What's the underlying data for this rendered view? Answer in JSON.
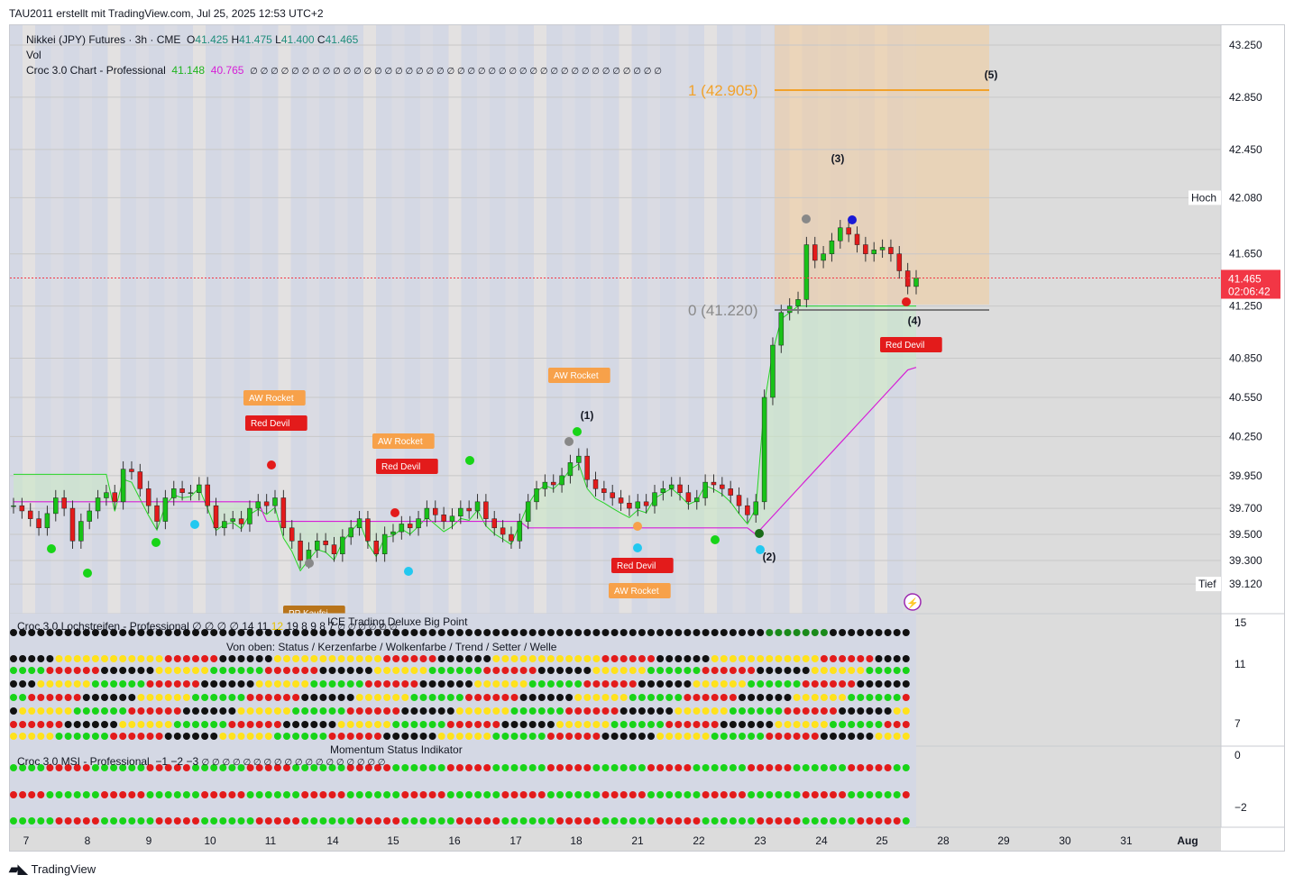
{
  "header": {
    "text": "TAU2011 erstellt mit TradingView.com, Jul 25, 2025 12:53 UTC+2"
  },
  "legend": {
    "symbol": "Nikkei (JPY) Futures · 3h · CME",
    "o_label": "O",
    "o_value": "41.425",
    "h_label": "H",
    "h_value": "41.475",
    "l_label": "L",
    "l_value": "41.400",
    "c_label": "C",
    "c_value": "41.465",
    "vol": "Vol",
    "croc": "Croc 3.0 Chart - Professional",
    "croc_v1": "41.148",
    "croc_v2": "40.765",
    "croc_rest": "∅ ∅ ∅ ∅ ∅ ∅ ∅ ∅ ∅ ∅ ∅ ∅ ∅ ∅ ∅ ∅ ∅ ∅ ∅ ∅ ∅ ∅ ∅ ∅ ∅ ∅ ∅ ∅ ∅ ∅ ∅ ∅ ∅ ∅ ∅ ∅ ∅ ∅ ∅ ∅"
  },
  "price_axis": [
    "43.250",
    "42.850",
    "42.450",
    "42.080",
    "41.650",
    "41.465",
    "41.250",
    "40.850",
    "40.550",
    "40.250",
    "39.950",
    "39.700",
    "39.500",
    "39.300",
    "39.120"
  ],
  "hoch": {
    "label": "Hoch",
    "value": "42.080"
  },
  "tief": {
    "label": "Tief",
    "value": "39.120"
  },
  "last_price": {
    "value": "41.465",
    "countdown": "02:06:42",
    "color": "#f23645"
  },
  "fib": {
    "level1": "1 (42.905)",
    "level0": "0 (41.220)"
  },
  "waves": [
    "(1)",
    "(2)",
    "(3)",
    "(4)",
    "(5)"
  ],
  "signals": {
    "aw_rocket": "AW Rocket",
    "red_devil": "Red Devil",
    "pp_partial": "PP Kaufsi"
  },
  "x_axis": [
    "7",
    "8",
    "9",
    "10",
    "11",
    "14",
    "15",
    "16",
    "17",
    "18",
    "21",
    "22",
    "23",
    "24",
    "25",
    "28",
    "29",
    "30",
    "31",
    "Aug"
  ],
  "pane2": {
    "title": "Croc 3.0 Lochstreifen - Professional ∅ ∅ ∅ ∅ 14",
    "title_nums": [
      "11",
      "12",
      "19",
      "8",
      "9",
      "8",
      "7"
    ],
    "title_rest": "∅ ∅ ∅ ∅ ∅ ∅",
    "overlay": "ICE Trading Deluxe Big Point",
    "subtitle": "Von oben: Status / Kerzenfarbe / Wolkenfarbe / Trend / Setter / Welle",
    "axis": [
      "15",
      "11",
      "7"
    ]
  },
  "pane3": {
    "overlay": "Momentum Status Indikator",
    "title": "Croc 3.0 MSI - Professional",
    "v1": "−1",
    "v2": "−2",
    "v3": "−3",
    "rest": "∅ ∅ ∅ ∅ ∅ ∅ ∅ ∅ ∅ ∅ ∅ ∅ ∅ ∅ ∅ ∅ ∅ ∅",
    "axis": [
      "0",
      "−2"
    ]
  },
  "footer": {
    "brand": "TradingView"
  },
  "chart_data": {
    "type": "candlestick",
    "title": "Nikkei (JPY) Futures · 3h · CME",
    "ylim": [
      39.0,
      43.4
    ],
    "ticks": [
      43.25,
      42.85,
      42.45,
      42.08,
      41.65,
      41.25,
      40.85,
      40.55,
      40.25,
      39.95,
      39.7,
      39.5,
      39.3,
      39.12
    ],
    "fib_levels": [
      {
        "label": "1 (42.905)",
        "value": 42.905
      },
      {
        "label": "0 (41.220)",
        "value": 41.22
      }
    ],
    "last": 41.465,
    "high": 42.08,
    "low": 39.12,
    "closes": [
      39.72,
      39.68,
      39.62,
      39.55,
      39.66,
      39.78,
      39.7,
      39.45,
      39.6,
      39.68,
      39.78,
      39.82,
      39.75,
      40.0,
      39.98,
      39.85,
      39.72,
      39.6,
      39.78,
      39.85,
      39.82,
      39.82,
      39.88,
      39.72,
      39.55,
      39.6,
      39.62,
      39.58,
      39.7,
      39.75,
      39.72,
      39.78,
      39.55,
      39.45,
      39.3,
      39.38,
      39.45,
      39.42,
      39.35,
      39.48,
      39.55,
      39.62,
      39.45,
      39.35,
      39.5,
      39.52,
      39.58,
      39.55,
      39.62,
      39.7,
      39.65,
      39.6,
      39.64,
      39.7,
      39.68,
      39.75,
      39.62,
      39.55,
      39.5,
      39.45,
      39.6,
      39.75,
      39.85,
      39.9,
      39.88,
      39.95,
      40.05,
      40.1,
      39.92,
      39.85,
      39.82,
      39.78,
      39.74,
      39.7,
      39.75,
      39.72,
      39.82,
      39.85,
      39.88,
      39.82,
      39.75,
      39.78,
      39.9,
      39.88,
      39.85,
      39.8,
      39.72,
      39.65,
      39.75,
      40.55,
      40.95,
      41.2,
      41.25,
      41.3,
      41.72,
      41.6,
      41.65,
      41.75,
      41.85,
      41.8,
      41.72,
      41.65,
      41.68,
      41.7,
      41.65,
      41.52,
      41.4,
      41.465
    ]
  }
}
